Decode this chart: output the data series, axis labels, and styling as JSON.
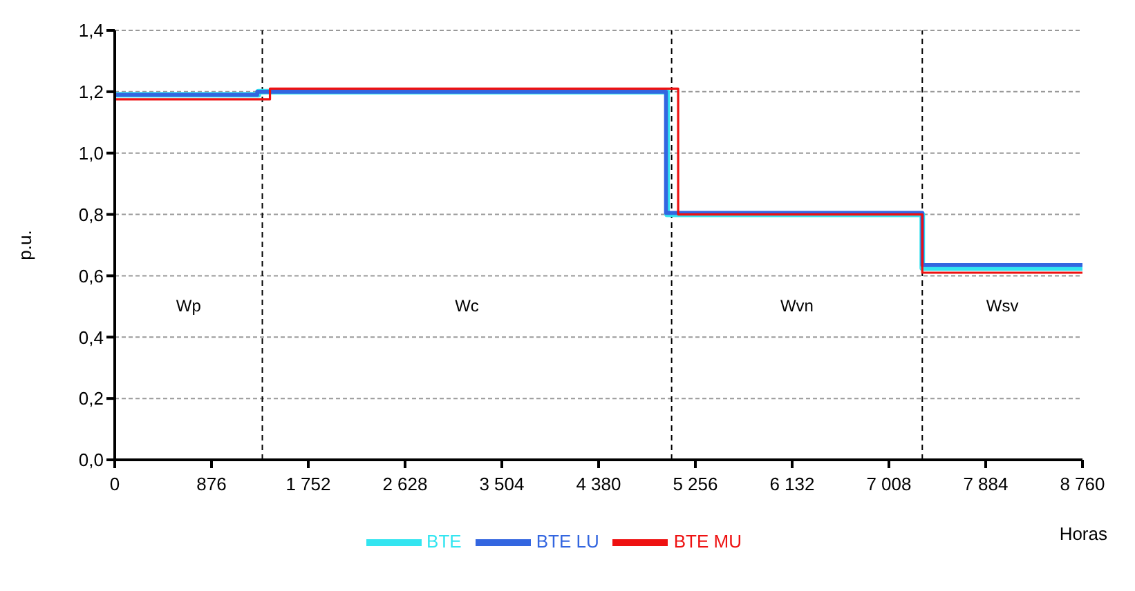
{
  "chart_data": {
    "type": "step",
    "xlabel": "Horas",
    "ylabel": "p.u.",
    "xlim": [
      0,
      8760
    ],
    "xticks": [
      0,
      876,
      {
        "value": 1752,
        "label": "1 752"
      },
      {
        "value": 2628,
        "label": "2 628"
      },
      {
        "value": 3504,
        "label": "3 504"
      },
      {
        "value": 4380,
        "label": "4 380"
      },
      {
        "value": 5256,
        "label": "5 256"
      },
      {
        "value": 6132,
        "label": "6 132"
      },
      {
        "value": 7008,
        "label": "7 008"
      },
      {
        "value": 7884,
        "label": "7 884"
      },
      {
        "value": 8760,
        "label": "8 760"
      }
    ],
    "ylim": [
      0,
      1.4
    ],
    "yticks": [
      {
        "value": 0,
        "label": "0,0"
      },
      {
        "value": 0.2,
        "label": "0,2"
      },
      {
        "value": 0.4,
        "label": "0,4"
      },
      {
        "value": 0.6,
        "label": "0,6"
      },
      {
        "value": 0.8,
        "label": "0,8"
      },
      {
        "value": 1.0,
        "label": "1,0"
      },
      {
        "value": 1.2,
        "label": "1,2"
      },
      {
        "value": 1.4,
        "label": "1,4"
      }
    ],
    "grid": "y",
    "legend": "bottom",
    "marker": "none",
    "series": [
      {
        "name": "BTE",
        "color": "#33e5f0",
        "x": [
          0,
          1300,
          5000,
          7310,
          8760
        ],
        "values": [
          1.19,
          1.2,
          0.8,
          0.625,
          0.625
        ]
      },
      {
        "name": "BTE LU",
        "color": "#3366e0",
        "x": [
          0,
          1290,
          4990,
          7310,
          8760
        ],
        "values": [
          1.19,
          1.2,
          0.805,
          0.635,
          0.635
        ]
      },
      {
        "name": "BTE MU",
        "color": "#ee1111",
        "x": [
          0,
          1405,
          5100,
          7310,
          8760
        ],
        "values": [
          1.175,
          1.21,
          0.8,
          0.61,
          0.61
        ]
      }
    ],
    "ref_lines": [
      {
        "axis": "x",
        "value": 1336,
        "label": null,
        "color": "#000000",
        "line_style": "dashed"
      },
      {
        "axis": "x",
        "value": 5041,
        "label": null,
        "color": "#000000",
        "line_style": "dashed"
      },
      {
        "axis": "x",
        "value": 7310,
        "label": null,
        "color": "#000000",
        "line_style": "dashed"
      }
    ],
    "annotations": [
      "Wp",
      "Wc",
      "Wvn",
      "Wsv"
    ]
  }
}
